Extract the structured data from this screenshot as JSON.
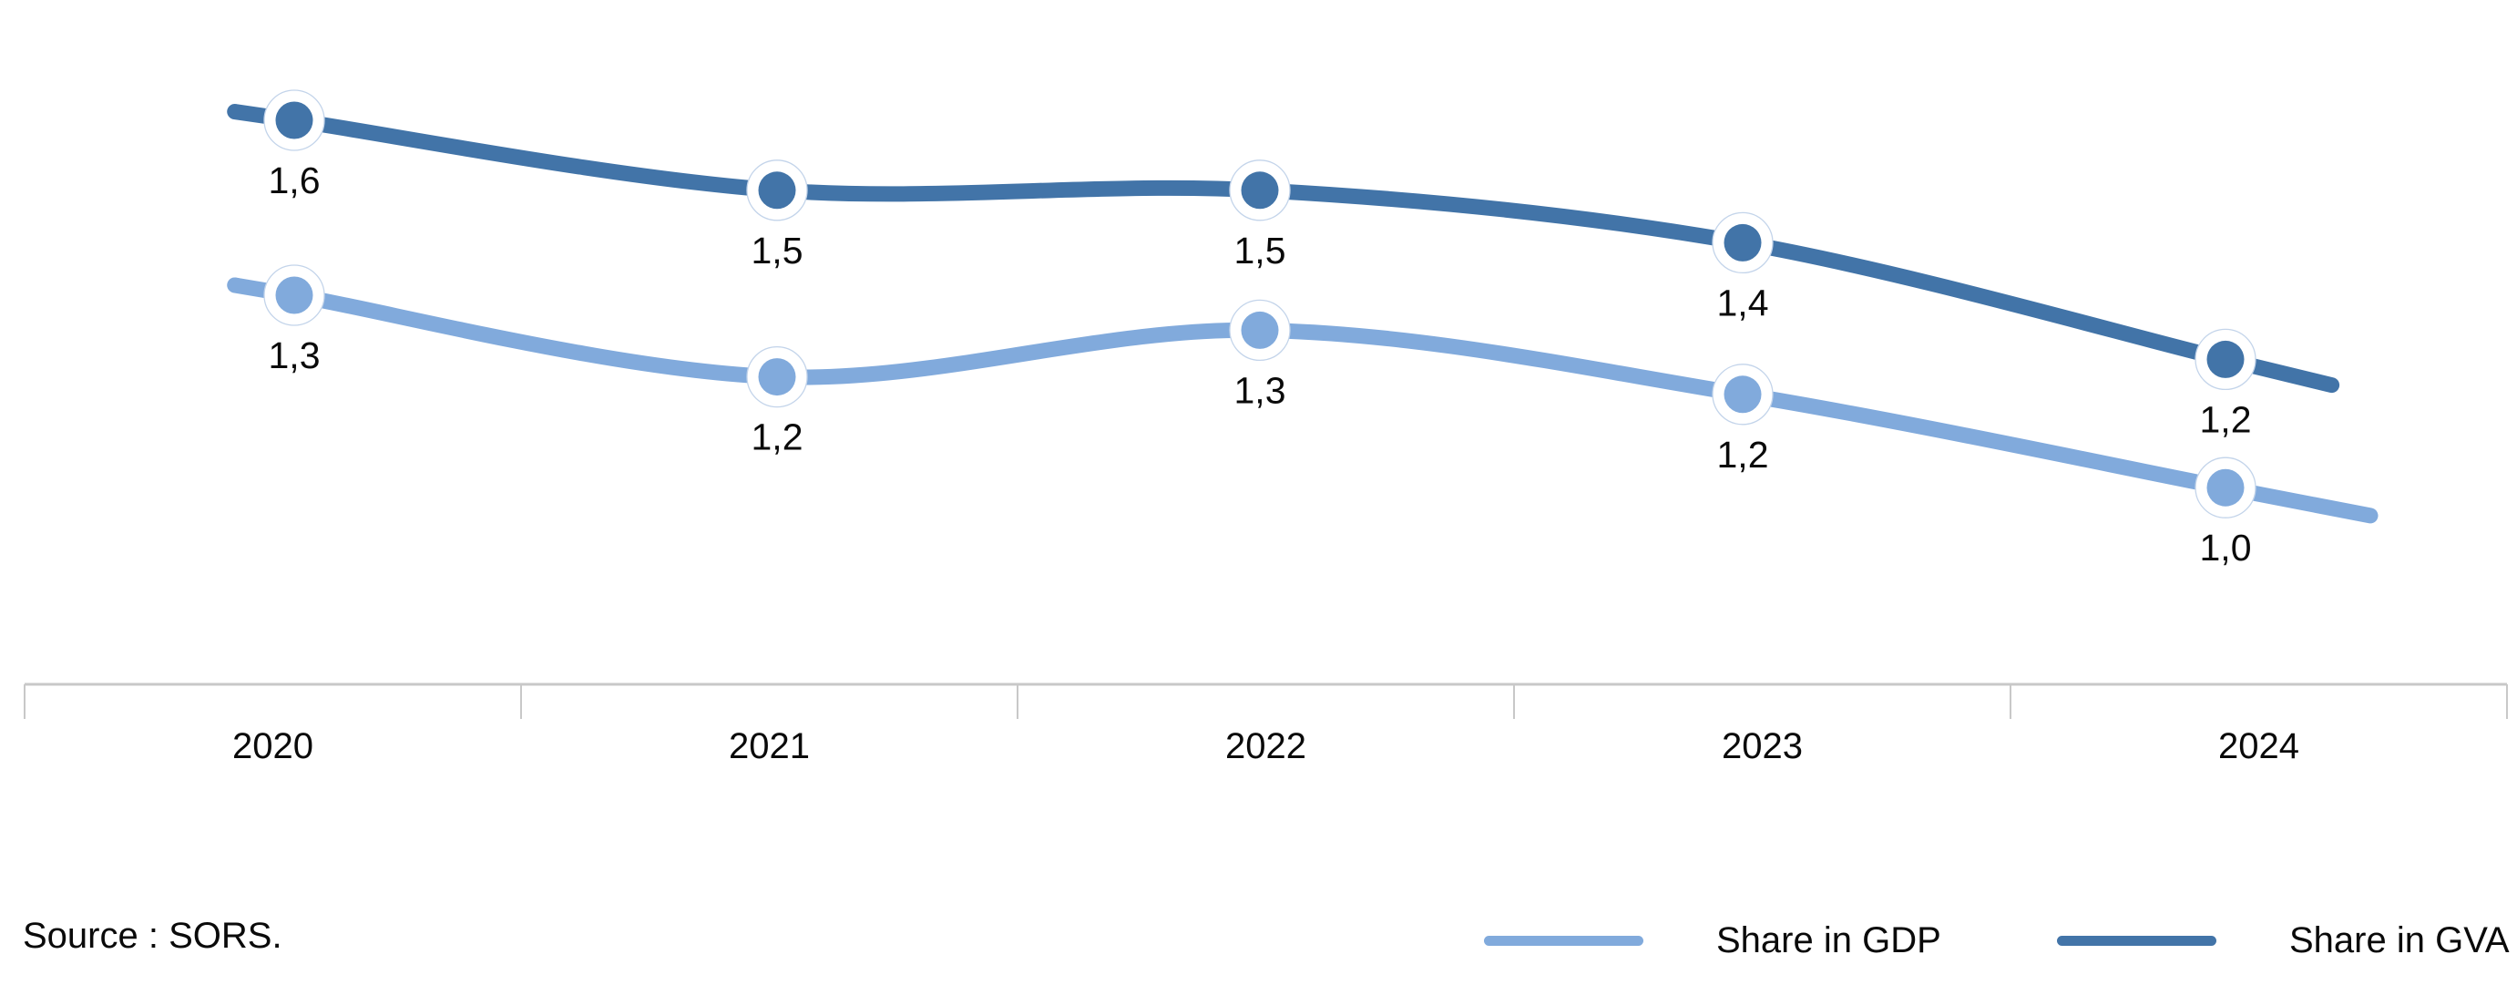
{
  "chart_data": {
    "type": "line",
    "title": "",
    "categories": [
      "2020",
      "2021",
      "2022",
      "2023",
      "2024"
    ],
    "series": [
      {
        "name": "Share in GDP",
        "color": "#81AADC",
        "values": [
          1.3,
          1.2,
          1.3,
          1.2,
          1.0
        ],
        "labels": [
          "1,3",
          "1,2",
          "1,3",
          "1,2",
          "1,0"
        ],
        "plot_values": [
          1.33,
          1.19,
          1.27,
          1.16,
          1.0
        ]
      },
      {
        "name": "Share in GVA",
        "color": "#4274A8",
        "values": [
          1.6,
          1.5,
          1.5,
          1.4,
          1.2
        ],
        "labels": [
          "1,6",
          "1,5",
          "1,5",
          "1,4",
          "1,2"
        ],
        "plot_values": [
          1.63,
          1.51,
          1.51,
          1.42,
          1.22
        ]
      }
    ],
    "decimal_separator": ",",
    "smooth_lines": true,
    "markers": true,
    "data_labels_position": "below",
    "xlabel": "",
    "ylabel": "",
    "y_axis_visible": false,
    "grid": false,
    "x_axis_color": "#C8C8C8",
    "text_color": "#0a0a0a",
    "legend_position": "bottom-right",
    "source": "Source : SORS."
  }
}
